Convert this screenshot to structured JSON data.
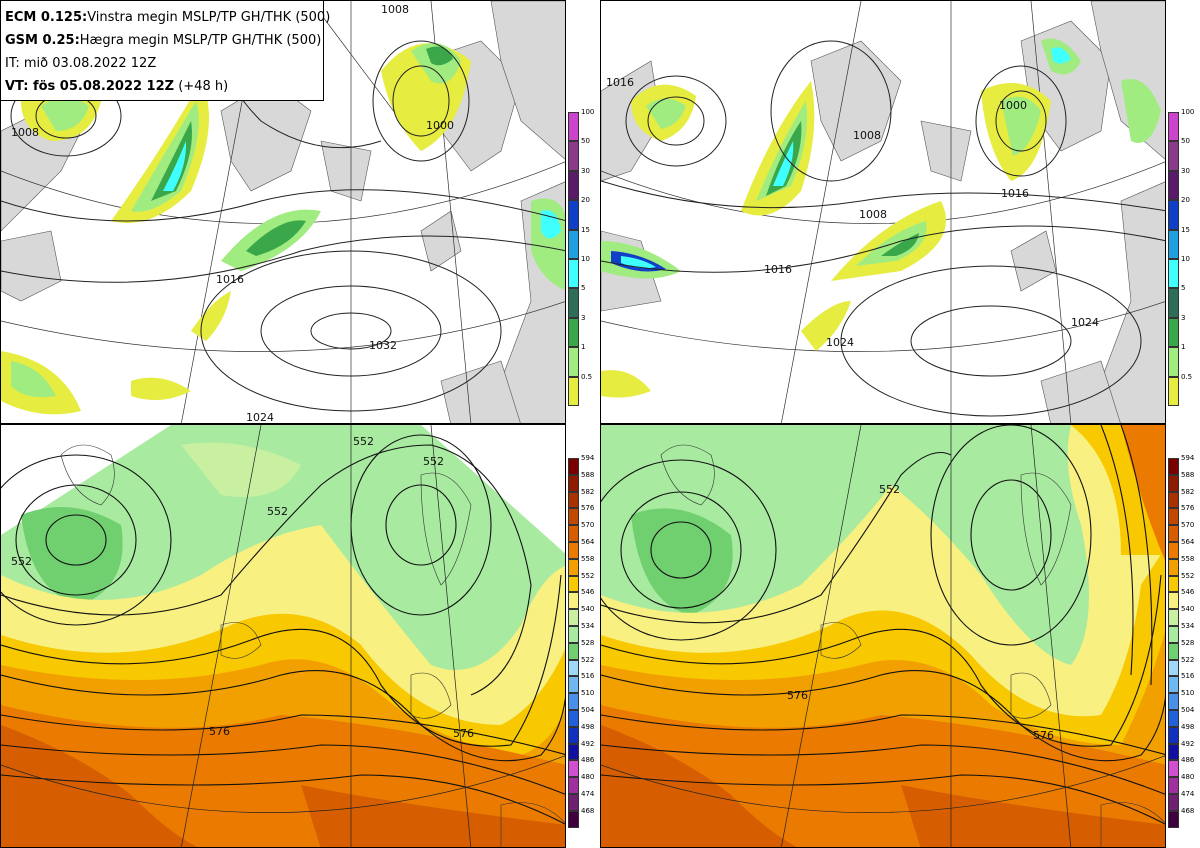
{
  "info": {
    "line1_bold": "ECM 0.125:",
    "line1_text": "Vinstra megin MSLP/TP GH/THK (500)",
    "line2_bold": "GSM 0.25:",
    "line2_text": "Hægra megin MSLP/TP GH/THK (500)",
    "line3": "IT: mið 03.08.2022 12Z",
    "line4_bold": "VT: fös 05.08.2022 12Z",
    "line4_text": "(+48 h)"
  },
  "precip_colorbar": {
    "labels": [
      "100",
      "50",
      "30",
      "20",
      "15",
      "10",
      "5",
      "3",
      "1",
      "0.5"
    ],
    "colors": [
      "#cc44cc",
      "#8a3a8a",
      "#5a1a6a",
      "#1040c8",
      "#20a0e0",
      "#40ffff",
      "#2e6e58",
      "#3aa84a",
      "#a0ec80",
      "#e6ec40"
    ]
  },
  "thickness_colorbar": {
    "labels": [
      "594",
      "588",
      "582",
      "576",
      "570",
      "564",
      "558",
      "552",
      "546",
      "540",
      "534",
      "528",
      "522",
      "516",
      "510",
      "504",
      "498",
      "492",
      "486",
      "480",
      "474",
      "468"
    ],
    "colors": [
      "#7a0000",
      "#8e1a00",
      "#a83200",
      "#c04800",
      "#d65e00",
      "#ea7a00",
      "#f2a000",
      "#f8c800",
      "#f8f080",
      "#c8f0a0",
      "#a8eaa0",
      "#70d070",
      "#a0d8f8",
      "#70b8f0",
      "#4890e8",
      "#2060d8",
      "#1030c0",
      "#1010a0",
      "#d050d0",
      "#a030a0",
      "#702070",
      "#400040"
    ]
  },
  "pressure_labels": {
    "left": [
      "1008",
      "1000",
      "1016",
      "1032",
      "1024",
      "1008"
    ],
    "right": [
      "1016",
      "1000",
      "1008",
      "1008",
      "1016",
      "1016",
      "1024",
      "1024"
    ]
  },
  "height_labels": {
    "left": [
      "552",
      "552",
      "552",
      "552",
      "576",
      "576"
    ],
    "right": [
      "552",
      "576",
      "576"
    ]
  },
  "colors": {
    "land": "#d8d8d8",
    "contour": "#222222",
    "grid": "#333333",
    "precip_light": "#e6ec40",
    "precip_mid": "#a0ec80",
    "precip_dark": "#3aa84a",
    "precip_darker": "#2e6e58",
    "precip_cyan": "#40ffff",
    "precip_blue": "#1040c8"
  }
}
